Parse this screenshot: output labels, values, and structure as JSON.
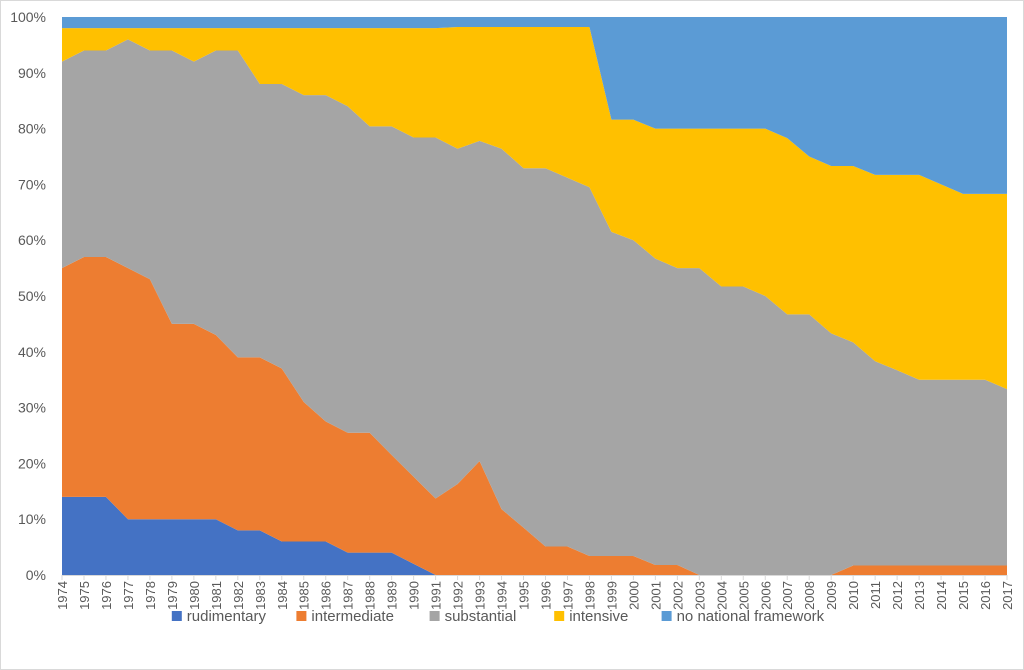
{
  "chart_data": {
    "type": "area",
    "stacked": true,
    "percent": true,
    "title": "",
    "xlabel": "",
    "ylabel": "",
    "ylim": [
      0,
      100
    ],
    "yticks": [
      "0%",
      "10%",
      "20%",
      "30%",
      "40%",
      "50%",
      "60%",
      "70%",
      "80%",
      "90%",
      "100%"
    ],
    "legend_position": "bottom",
    "categories": [
      "1974",
      "1975",
      "1976",
      "1977",
      "1978",
      "1979",
      "1980",
      "1981",
      "1982",
      "1983",
      "1984",
      "1985",
      "1986",
      "1987",
      "1988",
      "1989",
      "1990",
      "1991",
      "1992",
      "1993",
      "1994",
      "1995",
      "1996",
      "1997",
      "1998",
      "1999",
      "2000",
      "2001",
      "2002",
      "2003",
      "2004",
      "2005",
      "2006",
      "2007",
      "2008",
      "2009",
      "2010",
      "2011",
      "2012",
      "2013",
      "2014",
      "2015",
      "2016",
      "2017"
    ],
    "series": [
      {
        "name": "rudimentary",
        "color": "#4472c4",
        "values": [
          14,
          14,
          14,
          10,
          10,
          10,
          10,
          10,
          8,
          8,
          6,
          6,
          6,
          4,
          4,
          4,
          2,
          0,
          0,
          0,
          0,
          0,
          0,
          0,
          0,
          0,
          0,
          0,
          0,
          0,
          0,
          0,
          0,
          0,
          0,
          0,
          0,
          0,
          0,
          0,
          0,
          0,
          0,
          0
        ]
      },
      {
        "name": "intermediate",
        "color": "#ed7d31",
        "values": [
          41,
          43,
          43,
          45,
          43,
          35,
          35,
          33,
          31,
          31,
          31,
          25,
          21.5,
          21.5,
          21.5,
          17.5,
          15.6,
          13.7,
          16.3,
          20.4,
          11.8,
          8.5,
          5.1,
          5.1,
          3.4,
          3.4,
          3.4,
          1.8,
          1.8,
          0,
          0,
          0,
          0,
          0,
          0,
          0,
          1.7,
          1.7,
          1.7,
          1.7,
          1.7,
          1.7,
          1.7,
          1.7
        ]
      },
      {
        "name": "substantial",
        "color": "#a5a5a5",
        "values": [
          37,
          37,
          37,
          41,
          41,
          49,
          47,
          51,
          55,
          49,
          51,
          55,
          58.5,
          58.5,
          54.9,
          58.9,
          60.8,
          64.7,
          60.1,
          57.4,
          64.6,
          64.4,
          67.8,
          66.1,
          66.1,
          58.1,
          56.6,
          54.9,
          53.2,
          55,
          51.7,
          51.7,
          50,
          46.7,
          46.7,
          43.3,
          40,
          36.6,
          35,
          33.3,
          33.3,
          33.3,
          33.3,
          31.6
        ]
      },
      {
        "name": "intensive",
        "color": "#ffc000",
        "values": [
          6,
          4,
          4,
          2,
          4,
          4,
          6,
          4,
          4,
          10,
          10,
          12,
          12,
          14,
          17.6,
          17.6,
          19.6,
          19.6,
          21.8,
          20.4,
          21.8,
          25.3,
          25.3,
          27,
          28.7,
          20.1,
          21.6,
          23.3,
          25,
          25,
          28.3,
          28.3,
          30,
          31.6,
          28.3,
          30,
          31.6,
          33.4,
          35,
          36.7,
          35,
          33.3,
          33.3,
          35
        ]
      },
      {
        "name": "no national framework",
        "color": "#5b9bd5",
        "values": [
          2,
          2,
          2,
          2,
          2,
          2,
          2,
          2,
          2,
          2,
          2,
          2,
          2,
          2,
          2,
          2,
          2,
          2,
          1.8,
          1.8,
          1.8,
          1.8,
          1.8,
          1.8,
          1.8,
          18.4,
          18.4,
          20,
          20,
          20,
          20,
          20,
          20,
          21.7,
          25,
          26.7,
          26.7,
          28.3,
          28.3,
          28.3,
          30,
          31.7,
          31.7,
          31.7
        ]
      }
    ]
  }
}
